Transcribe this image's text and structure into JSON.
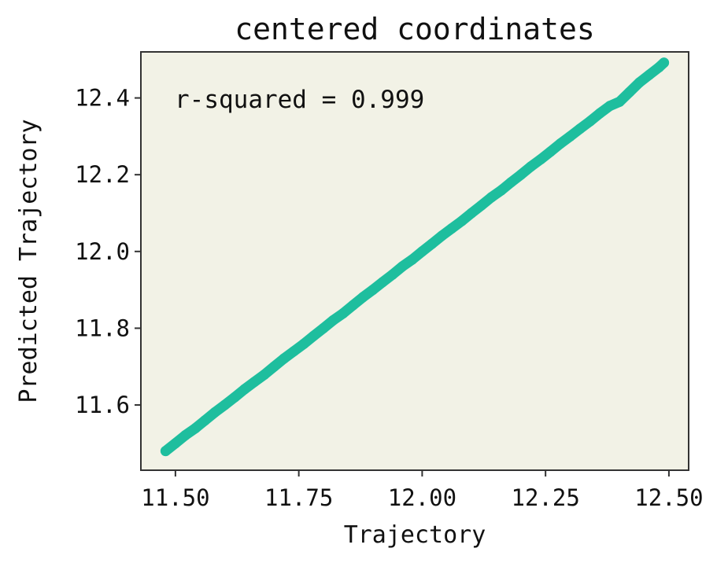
{
  "chart_data": {
    "type": "scatter",
    "title": "centered coordinates",
    "xlabel": "Trajectory",
    "ylabel": "Predicted Trajectory",
    "annotation": "r-squared = 0.999",
    "xlim": [
      11.43,
      12.54
    ],
    "ylim": [
      11.43,
      12.52
    ],
    "xticks": [
      11.5,
      11.75,
      12.0,
      12.25,
      12.5
    ],
    "xtick_labels": [
      "11.50",
      "11.75",
      "12.00",
      "12.25",
      "12.50"
    ],
    "yticks": [
      11.6,
      11.8,
      12.0,
      12.2,
      12.4
    ],
    "ytick_labels": [
      "11.6",
      "11.8",
      "12.0",
      "12.2",
      "12.4"
    ],
    "grid": false,
    "colors": {
      "points": "#1ebe9e",
      "plot_background": "#f2f2e6",
      "axes": "#333333"
    },
    "series": [
      {
        "x": [
          11.48,
          11.5,
          11.52,
          11.54,
          11.56,
          11.58,
          11.6,
          11.62,
          11.64,
          11.66,
          11.68,
          11.7,
          11.72,
          11.74,
          11.76,
          11.78,
          11.8,
          11.82,
          11.84,
          11.86,
          11.88,
          11.9,
          11.92,
          11.94,
          11.96,
          11.98,
          12.0,
          12.02,
          12.04,
          12.06,
          12.08,
          12.1,
          12.12,
          12.14,
          12.16,
          12.18,
          12.2,
          12.22,
          12.24,
          12.26,
          12.28,
          12.3,
          12.32,
          12.34,
          12.36,
          12.38,
          12.4,
          12.42,
          12.44,
          12.46,
          12.48,
          12.49
        ],
        "y": [
          11.48,
          11.5,
          11.521,
          11.539,
          11.56,
          11.581,
          11.6,
          11.62,
          11.641,
          11.66,
          11.679,
          11.7,
          11.721,
          11.74,
          11.759,
          11.78,
          11.8,
          11.821,
          11.839,
          11.86,
          11.881,
          11.9,
          11.92,
          11.94,
          11.961,
          11.979,
          12.0,
          12.02,
          12.041,
          12.06,
          12.079,
          12.1,
          12.12,
          12.141,
          12.159,
          12.18,
          12.2,
          12.221,
          12.24,
          12.26,
          12.281,
          12.3,
          12.32,
          12.339,
          12.36,
          12.379,
          12.39,
          12.415,
          12.44,
          12.46,
          12.48,
          12.492
        ]
      }
    ]
  }
}
